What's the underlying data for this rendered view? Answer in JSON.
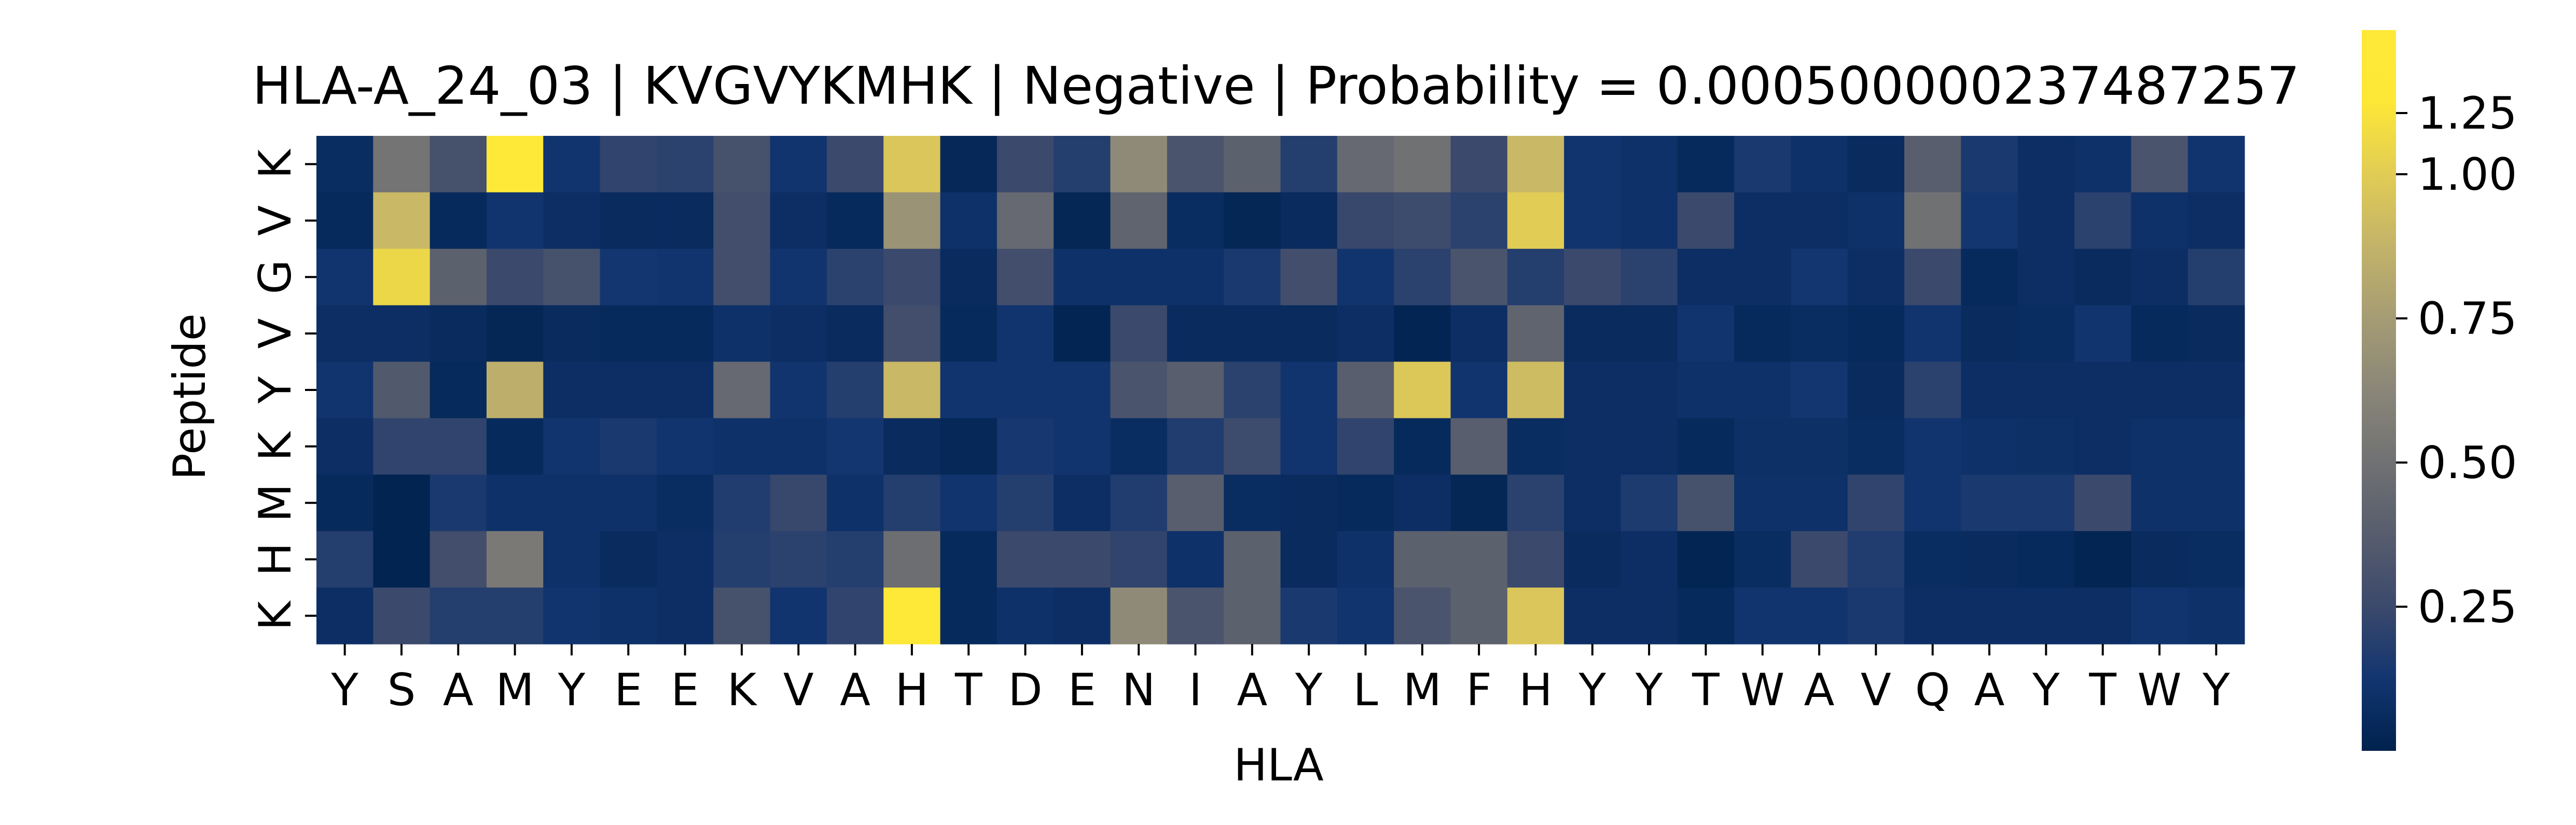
{
  "chart_data": {
    "type": "heatmap",
    "title": "HLA-A_24_03 | KVGVYKMHK | Negative | Probability = 0.000500000237487257",
    "xlabel": "HLA",
    "ylabel": "Peptide",
    "x_labels": [
      "Y",
      "S",
      "A",
      "M",
      "Y",
      "E",
      "E",
      "K",
      "V",
      "A",
      "H",
      "T",
      "D",
      "E",
      "N",
      "I",
      "A",
      "Y",
      "L",
      "M",
      "F",
      "H",
      "Y",
      "Y",
      "T",
      "W",
      "A",
      "V",
      "Q",
      "A",
      "Y",
      "T",
      "W",
      "Y"
    ],
    "y_labels": [
      "K",
      "V",
      "G",
      "V",
      "Y",
      "K",
      "M",
      "H",
      "K"
    ],
    "colormap": "cividis",
    "colorbar_range": [
      0.0,
      1.25
    ],
    "colorbar_ticks": [
      0.25,
      0.5,
      0.75,
      1.0
    ],
    "colorbar_tick_labels": [
      "0.25",
      "0.50",
      "0.75",
      "1.00"
    ],
    "colorbar_top_label": "1.25",
    "values": [
      [
        0.07,
        0.52,
        0.3,
        1.25,
        0.12,
        0.22,
        0.2,
        0.3,
        0.12,
        0.25,
        0.97,
        0.04,
        0.25,
        0.18,
        0.65,
        0.32,
        0.4,
        0.18,
        0.45,
        0.5,
        0.25,
        0.9,
        0.12,
        0.1,
        0.05,
        0.15,
        0.1,
        0.06,
        0.38,
        0.15,
        0.08,
        0.1,
        0.32,
        0.12
      ],
      [
        0.05,
        0.9,
        0.05,
        0.12,
        0.08,
        0.06,
        0.06,
        0.28,
        0.08,
        0.05,
        0.7,
        0.1,
        0.45,
        0.03,
        0.42,
        0.07,
        0.03,
        0.06,
        0.24,
        0.26,
        0.2,
        1.0,
        0.12,
        0.1,
        0.25,
        0.08,
        0.08,
        0.1,
        0.5,
        0.13,
        0.08,
        0.2,
        0.1,
        0.08
      ],
      [
        0.12,
        1.05,
        0.4,
        0.25,
        0.3,
        0.13,
        0.12,
        0.28,
        0.12,
        0.2,
        0.25,
        0.06,
        0.28,
        0.1,
        0.1,
        0.1,
        0.15,
        0.28,
        0.12,
        0.2,
        0.32,
        0.18,
        0.25,
        0.2,
        0.08,
        0.08,
        0.13,
        0.08,
        0.25,
        0.05,
        0.08,
        0.06,
        0.08,
        0.18
      ],
      [
        0.08,
        0.08,
        0.06,
        0.03,
        0.06,
        0.05,
        0.05,
        0.1,
        0.08,
        0.06,
        0.28,
        0.05,
        0.12,
        0.02,
        0.25,
        0.06,
        0.06,
        0.06,
        0.08,
        0.02,
        0.08,
        0.42,
        0.06,
        0.06,
        0.12,
        0.05,
        0.07,
        0.05,
        0.12,
        0.06,
        0.07,
        0.12,
        0.05,
        0.06
      ],
      [
        0.12,
        0.35,
        0.05,
        0.85,
        0.08,
        0.08,
        0.08,
        0.45,
        0.12,
        0.18,
        0.9,
        0.12,
        0.12,
        0.12,
        0.32,
        0.38,
        0.2,
        0.12,
        0.38,
        0.98,
        0.12,
        0.92,
        0.08,
        0.08,
        0.1,
        0.1,
        0.13,
        0.06,
        0.2,
        0.08,
        0.08,
        0.08,
        0.08,
        0.08
      ],
      [
        0.08,
        0.22,
        0.22,
        0.05,
        0.12,
        0.15,
        0.12,
        0.1,
        0.1,
        0.13,
        0.06,
        0.04,
        0.14,
        0.12,
        0.07,
        0.17,
        0.26,
        0.12,
        0.22,
        0.05,
        0.38,
        0.07,
        0.08,
        0.08,
        0.05,
        0.09,
        0.09,
        0.07,
        0.12,
        0.1,
        0.09,
        0.08,
        0.1,
        0.1
      ],
      [
        0.05,
        0.01,
        0.15,
        0.1,
        0.1,
        0.1,
        0.07,
        0.17,
        0.24,
        0.1,
        0.18,
        0.12,
        0.18,
        0.08,
        0.17,
        0.38,
        0.07,
        0.06,
        0.05,
        0.08,
        0.03,
        0.2,
        0.08,
        0.16,
        0.3,
        0.1,
        0.1,
        0.22,
        0.12,
        0.15,
        0.15,
        0.25,
        0.1,
        0.1
      ],
      [
        0.18,
        0.01,
        0.28,
        0.55,
        0.1,
        0.06,
        0.08,
        0.18,
        0.2,
        0.18,
        0.48,
        0.05,
        0.25,
        0.25,
        0.22,
        0.1,
        0.4,
        0.06,
        0.1,
        0.4,
        0.4,
        0.25,
        0.06,
        0.08,
        0.02,
        0.07,
        0.25,
        0.17,
        0.07,
        0.06,
        0.05,
        0.02,
        0.06,
        0.07
      ],
      [
        0.08,
        0.25,
        0.18,
        0.18,
        0.12,
        0.1,
        0.08,
        0.3,
        0.12,
        0.22,
        1.25,
        0.05,
        0.1,
        0.08,
        0.65,
        0.32,
        0.4,
        0.15,
        0.12,
        0.32,
        0.4,
        0.97,
        0.08,
        0.08,
        0.05,
        0.12,
        0.12,
        0.15,
        0.08,
        0.08,
        0.08,
        0.08,
        0.12,
        0.1
      ]
    ]
  }
}
